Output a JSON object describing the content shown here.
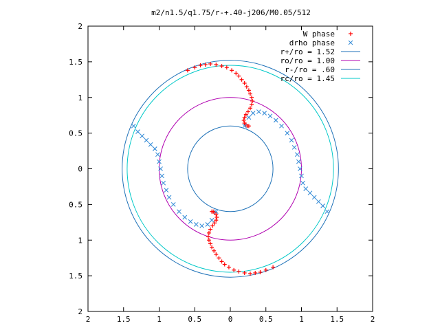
{
  "colors": {
    "w_phase": "#ff0000",
    "drho_phase": "#3b8fd8",
    "r_plus": "#1f72b8",
    "r_o": "#b000b0",
    "r_minus": "#1f72b8",
    "r_c": "#00c8c8",
    "axis": "#000000"
  },
  "chart_data": {
    "type": "scatter",
    "title": "m2/n1.5/q1.75/r-+.40-j206/M0.05/512",
    "xlim": [
      -2,
      2
    ],
    "ylim": [
      -2,
      2
    ],
    "x_ticks": [
      -2,
      -1.5,
      -1,
      -0.5,
      0,
      0.5,
      1,
      1.5,
      2
    ],
    "y_ticks": [
      -2,
      -1.5,
      -1,
      -0.5,
      0,
      0.5,
      1,
      1.5,
      2
    ],
    "x_tick_labels": [
      "2",
      "1.5",
      "1",
      "0.5",
      "0",
      "0.5",
      "1",
      "1.5",
      "2"
    ],
    "y_tick_labels": [
      "2",
      "1.5",
      "1",
      "0.5",
      "0",
      "0.5",
      "1",
      "1.5",
      "2"
    ],
    "legend_position": "top-right",
    "legend": [
      {
        "label": "W phase",
        "marker": "+",
        "color": "#ff0000"
      },
      {
        "label": "drho phase",
        "marker": "x",
        "color": "#3b8fd8"
      },
      {
        "label": "r+/ro = 1.52",
        "marker": "line",
        "color": "#1f72b8"
      },
      {
        "label": "ro/ro = 1.00",
        "marker": "line",
        "color": "#b000b0"
      },
      {
        "label": "r-/ro = .60",
        "marker": "line",
        "color": "#1f72b8"
      },
      {
        "label": "rc/ro = 1.45",
        "marker": "line",
        "color": "#00c8c8"
      }
    ],
    "circles": [
      {
        "name": "r+/ro",
        "radius": 1.52,
        "color": "#1f72b8"
      },
      {
        "name": "ro/ro",
        "radius": 1.0,
        "color": "#b000b0"
      },
      {
        "name": "r-/ro",
        "radius": 0.6,
        "color": "#1f72b8"
      },
      {
        "name": "rc/ro",
        "radius": 1.45,
        "color": "#00c8c8"
      }
    ],
    "series": [
      {
        "name": "W phase",
        "marker": "+",
        "x": [
          -0.6,
          -0.5,
          -0.42,
          -0.35,
          -0.28,
          -0.2,
          -0.12,
          -0.05,
          0.02,
          0.08,
          0.12,
          0.16,
          0.2,
          0.23,
          0.26,
          0.28,
          0.3,
          0.31,
          0.3,
          0.28,
          0.25,
          0.22,
          0.2,
          0.19,
          0.2,
          0.22,
          0.24,
          0.26,
          0.6,
          0.5,
          0.42,
          0.35,
          0.28,
          0.2,
          0.12,
          0.05,
          -0.02,
          -0.08,
          -0.12,
          -0.16,
          -0.2,
          -0.23,
          -0.26,
          -0.28,
          -0.3,
          -0.31,
          -0.3,
          -0.28,
          -0.25,
          -0.22,
          -0.2,
          -0.19,
          -0.2,
          -0.22,
          -0.24,
          -0.26
        ],
        "y": [
          1.38,
          1.42,
          1.45,
          1.46,
          1.47,
          1.46,
          1.44,
          1.42,
          1.38,
          1.34,
          1.3,
          1.25,
          1.2,
          1.15,
          1.1,
          1.05,
          1.0,
          0.95,
          0.9,
          0.85,
          0.8,
          0.76,
          0.72,
          0.68,
          0.64,
          0.62,
          0.6,
          0.6,
          -1.38,
          -1.42,
          -1.45,
          -1.46,
          -1.47,
          -1.46,
          -1.44,
          -1.42,
          -1.38,
          -1.34,
          -1.3,
          -1.25,
          -1.2,
          -1.15,
          -1.1,
          -1.05,
          -1.0,
          -0.95,
          -0.9,
          -0.85,
          -0.8,
          -0.76,
          -0.72,
          -0.68,
          -0.64,
          -0.62,
          -0.6,
          -0.6
        ]
      },
      {
        "name": "drho phase",
        "marker": "x",
        "x": [
          0.2,
          0.26,
          0.32,
          0.4,
          0.48,
          0.56,
          0.64,
          0.72,
          0.8,
          0.86,
          0.9,
          0.94,
          0.96,
          0.98,
          1.0,
          1.02,
          1.06,
          1.12,
          1.18,
          1.24,
          1.3,
          1.36,
          -0.2,
          -0.26,
          -0.32,
          -0.4,
          -0.48,
          -0.56,
          -0.64,
          -0.72,
          -0.8,
          -0.86,
          -0.9,
          -0.94,
          -0.96,
          -0.98,
          -1.0,
          -1.02,
          -1.06,
          -1.12,
          -1.18,
          -1.24,
          -1.3,
          -1.36
        ],
        "y": [
          0.6,
          0.72,
          0.78,
          0.8,
          0.78,
          0.74,
          0.68,
          0.6,
          0.5,
          0.4,
          0.3,
          0.2,
          0.1,
          0.0,
          -0.1,
          -0.2,
          -0.28,
          -0.34,
          -0.4,
          -0.46,
          -0.52,
          -0.6,
          -0.6,
          -0.72,
          -0.78,
          -0.8,
          -0.78,
          -0.74,
          -0.68,
          -0.6,
          -0.5,
          -0.4,
          -0.3,
          -0.2,
          -0.1,
          0.0,
          0.1,
          0.2,
          0.28,
          0.34,
          0.4,
          0.46,
          0.52,
          0.6
        ]
      }
    ]
  }
}
